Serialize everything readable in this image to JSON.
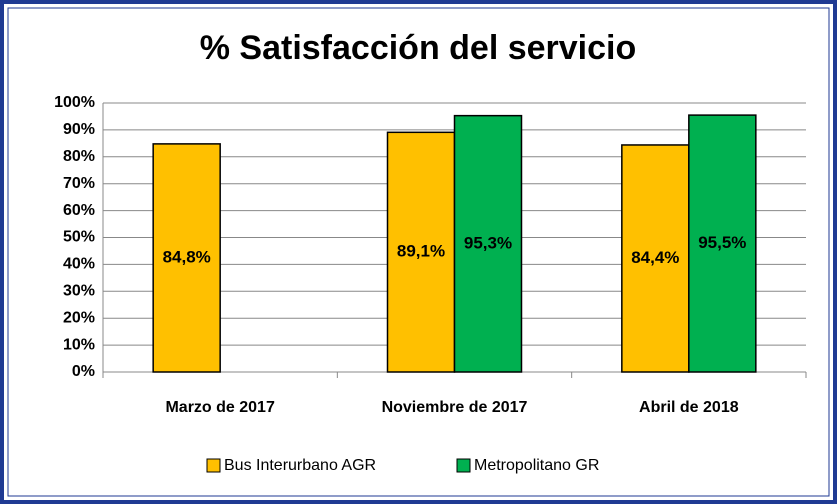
{
  "chart_data": {
    "type": "bar",
    "title": "% Satisfacción del servicio",
    "categories": [
      "Marzo de 2017",
      "Noviembre de 2017",
      "Abril de 2018"
    ],
    "series": [
      {
        "name": "Bus Interurbano AGR",
        "color": "#ffc000",
        "values": [
          84.8,
          89.1,
          84.4
        ],
        "value_labels": [
          "84,8%",
          "89,1%",
          "84,4%"
        ]
      },
      {
        "name": "Metropolitano GR",
        "color": "#00b050",
        "values": [
          null,
          95.3,
          95.5
        ],
        "value_labels": [
          null,
          "95,3%",
          "95,5%"
        ]
      }
    ],
    "ylim": [
      0,
      100
    ],
    "yticks": [
      {
        "value": 0,
        "label": "0%"
      },
      {
        "value": 10,
        "label": "10%"
      },
      {
        "value": 20,
        "label": "20%"
      },
      {
        "value": 30,
        "label": "30%"
      },
      {
        "value": 40,
        "label": "40%"
      },
      {
        "value": 50,
        "label": "50%"
      },
      {
        "value": 60,
        "label": "60%"
      },
      {
        "value": 70,
        "label": "70%"
      },
      {
        "value": 80,
        "label": "80%"
      },
      {
        "value": 90,
        "label": "90%"
      },
      {
        "value": 100,
        "label": "100%"
      }
    ],
    "grid": true,
    "legend": "bottom"
  }
}
